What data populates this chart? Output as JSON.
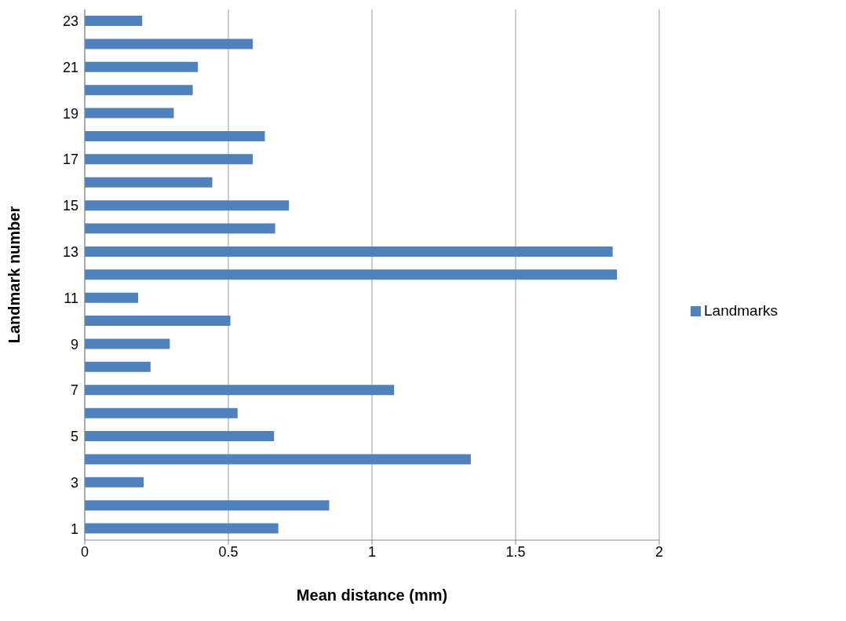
{
  "chart_data": {
    "type": "bar",
    "orientation": "horizontal",
    "xlabel": "Mean distance (mm)",
    "ylabel": "Landmark number",
    "categories": [
      "23",
      null,
      "21",
      null,
      "19",
      null,
      "17",
      null,
      "15",
      null,
      "13",
      null,
      "11",
      null,
      "9",
      null,
      "7",
      null,
      "5",
      null,
      "3",
      null,
      "1"
    ],
    "series": [
      {
        "name": "Landmarks",
        "color": "#4f81bd",
        "values": [
          0.2,
          0.585,
          0.394,
          0.376,
          0.31,
          0.627,
          0.585,
          0.444,
          0.711,
          0.663,
          1.838,
          1.853,
          0.186,
          0.507,
          0.296,
          0.229,
          1.077,
          0.532,
          0.659,
          1.344,
          0.205,
          0.851,
          0.674
        ]
      }
    ],
    "xlim": [
      0,
      2
    ],
    "xticks": [
      0,
      0.5,
      1,
      1.5,
      2
    ],
    "grid": "x",
    "legend": "right"
  }
}
